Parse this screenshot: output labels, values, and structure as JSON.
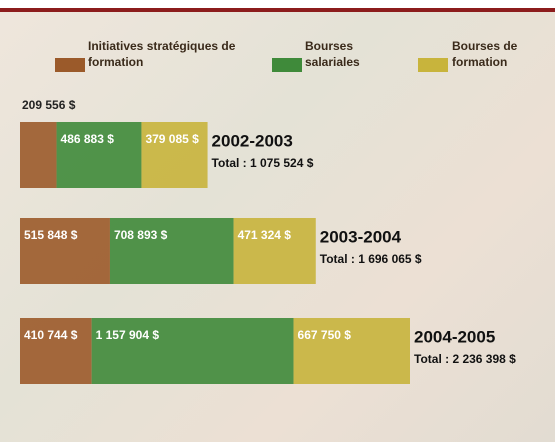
{
  "chart_data": {
    "type": "stacked-bar-horizontal",
    "categories": [
      "2002-2003",
      "2003-2004",
      "2004-2005"
    ],
    "series": [
      {
        "name": "Initiatives stratégiques de formation",
        "color": "#9b5a2a",
        "values": [
          209556,
          515848,
          410744
        ],
        "value_labels": [
          "209 556 $",
          "515 848 $",
          "410 744 $"
        ]
      },
      {
        "name": "Bourses salariales",
        "color": "#3f8a3a",
        "values": [
          486883,
          708893,
          1157904
        ],
        "value_labels": [
          "486 883 $",
          "708 893 $",
          "1 157 904 $"
        ]
      },
      {
        "name": "Bourses de formation",
        "color": "#c8b43c",
        "values": [
          379085,
          471324,
          667750
        ],
        "value_labels": [
          "379 085 $",
          "471 324 $",
          "667 750 $"
        ]
      }
    ],
    "totals": [
      1075524,
      1696065,
      2236398
    ],
    "total_labels": [
      "Total : 1 075 524 $",
      "Total : 1 696 065 $",
      "Total : 2 236 398 $"
    ]
  }
}
